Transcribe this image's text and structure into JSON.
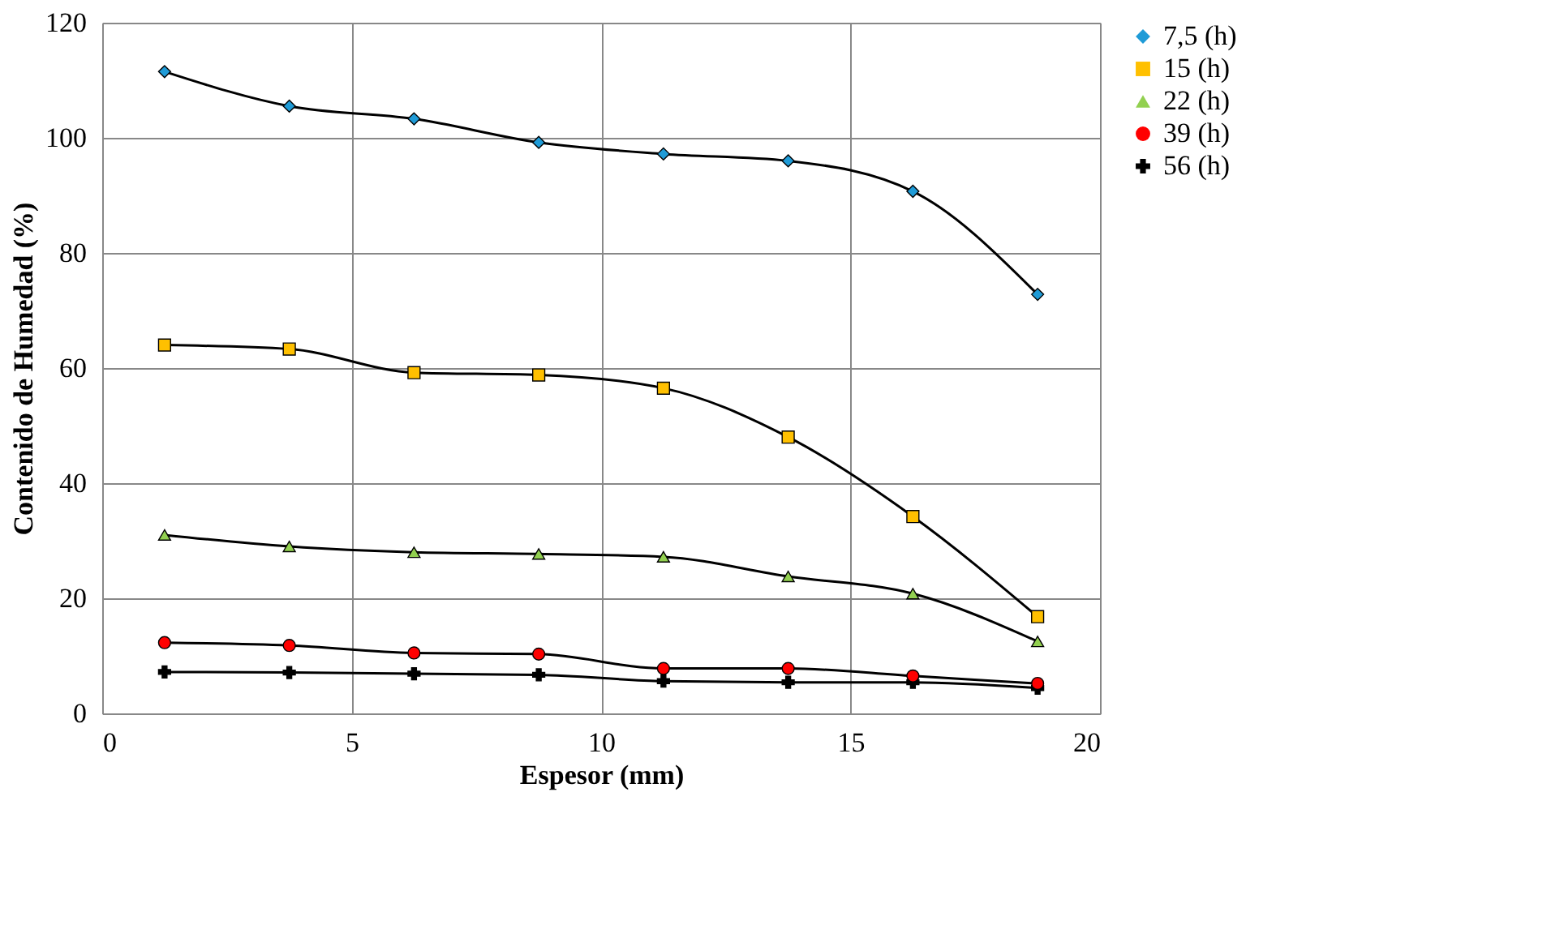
{
  "chart_data": {
    "type": "line",
    "xlabel": "Espesor (mm)",
    "ylabel": "Contenido de Humedad (%)",
    "x": [
      1.25,
      3.75,
      6.25,
      8.75,
      11.25,
      13.75,
      16.25,
      18.75
    ],
    "series": [
      {
        "name": "7,5 (h)",
        "color": "#1f9bd7",
        "marker": "diamond",
        "values": [
          111.5,
          105.5,
          103.3,
          99.2,
          97.2,
          96,
          90.7,
          72.8
        ]
      },
      {
        "name": "15 (h)",
        "color": "#ffc000",
        "marker": "square",
        "values": [
          64,
          63.3,
          59.2,
          58.8,
          56.5,
          48,
          34.2,
          16.8
        ]
      },
      {
        "name": "22 (h)",
        "color": "#92d050",
        "marker": "triangle",
        "values": [
          31,
          29,
          28,
          27.7,
          27.2,
          23.8,
          20.8,
          12.5
        ]
      },
      {
        "name": "39 (h)",
        "color": "#ff0000",
        "marker": "circle",
        "values": [
          12.3,
          11.8,
          10.5,
          10.3,
          7.8,
          7.8,
          6.5,
          5.2
        ]
      },
      {
        "name": "56 (h)",
        "color": "#000000",
        "marker": "cross",
        "values": [
          7.2,
          7.1,
          6.9,
          6.7,
          5.6,
          5.4,
          5.4,
          4.4
        ]
      }
    ],
    "xlim": [
      0,
      20
    ],
    "xticks": [
      0,
      5,
      10,
      15,
      20
    ],
    "ylim": [
      0,
      120
    ],
    "yticks": [
      0,
      20,
      40,
      60,
      80,
      100,
      120
    ],
    "grid": true,
    "legend": "right",
    "line_style": "solid"
  }
}
